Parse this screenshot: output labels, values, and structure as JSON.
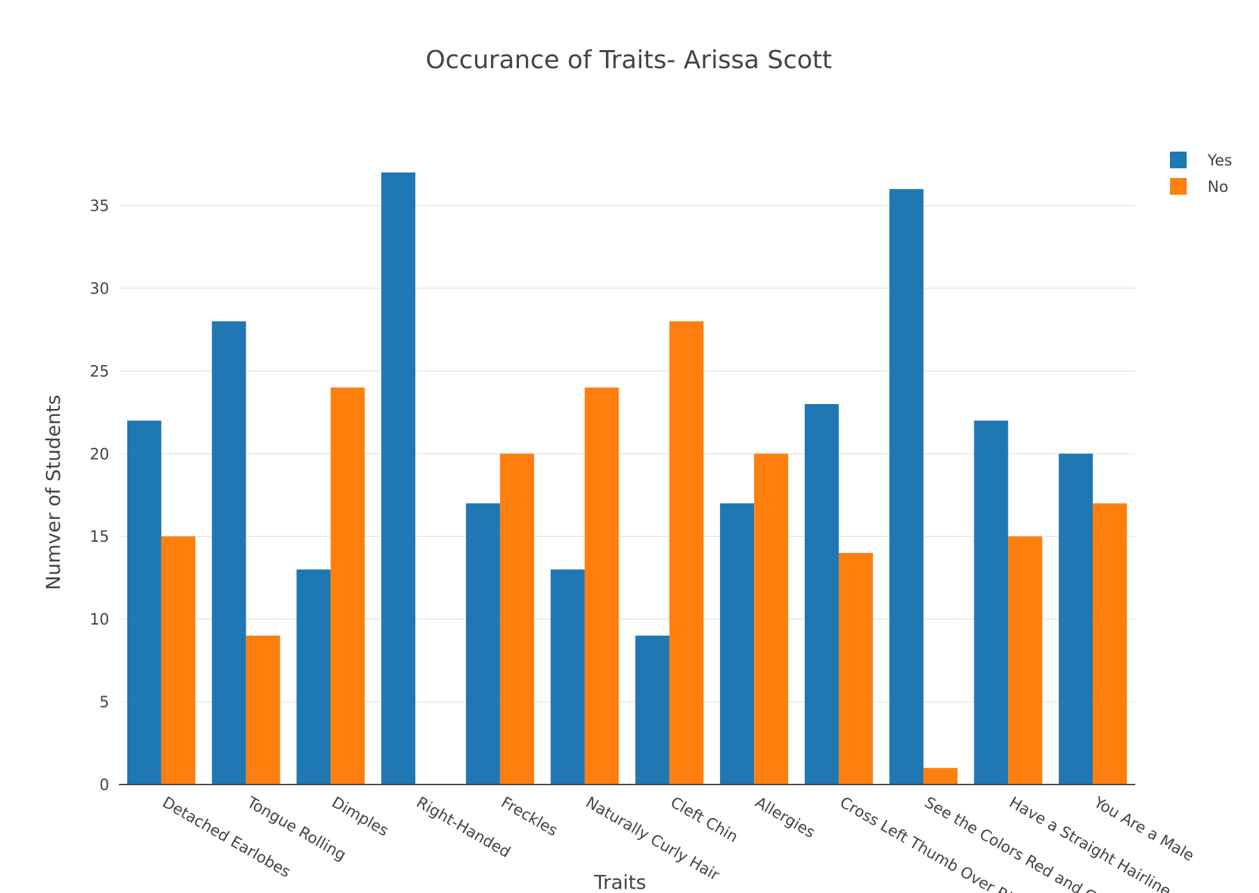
{
  "chart_data": {
    "type": "bar",
    "title": "Occurance of Traits- Arissa Scott",
    "xlabel": "Traits",
    "ylabel": "Numver of Students",
    "categories": [
      "Detached Earlobes",
      "Tongue Rolling",
      "Dimples",
      "Right-Handed",
      "Freckles",
      "Naturally Curly Hair",
      "Cleft Chin",
      "Allergies",
      "Cross Left Thumb Over Right",
      "See the Colors Red and Green",
      "Have a Straight Hairline",
      "You Are a Male"
    ],
    "series": [
      {
        "name": "Yes",
        "color": "#1f77b4",
        "values": [
          22,
          28,
          13,
          37,
          17,
          13,
          9,
          17,
          23,
          36,
          22,
          20
        ]
      },
      {
        "name": "No",
        "color": "#ff7f0e",
        "values": [
          15,
          9,
          24,
          0,
          20,
          24,
          28,
          20,
          14,
          1,
          15,
          17
        ]
      }
    ],
    "ylim": [
      0,
      37
    ],
    "yticks": [
      0,
      5,
      10,
      15,
      20,
      25,
      30,
      35
    ],
    "grid": true,
    "legend_position": "top-right"
  }
}
